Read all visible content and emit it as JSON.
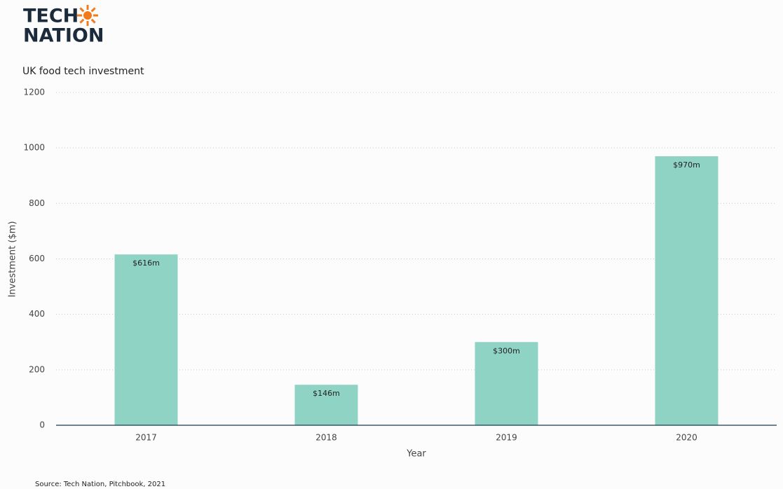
{
  "logo": {
    "line1": "TECH",
    "line2": "NATION"
  },
  "chart_data": {
    "type": "bar",
    "title": "UK food tech investment",
    "x_label": "Year",
    "y_label": "Investment ($m)",
    "categories": [
      "2017",
      "2018",
      "2019",
      "2020"
    ],
    "values": [
      616,
      146,
      300,
      970
    ],
    "value_labels": [
      "$616m",
      "$146m",
      "$300m",
      "$970m"
    ],
    "color": "#8fd3c5",
    "ylim": [
      0,
      1200
    ],
    "yticks": [
      0,
      200,
      400,
      600,
      800,
      1000,
      1200
    ],
    "grid": true,
    "source": "Source: Tech Nation, Pitchbook, 2021"
  }
}
